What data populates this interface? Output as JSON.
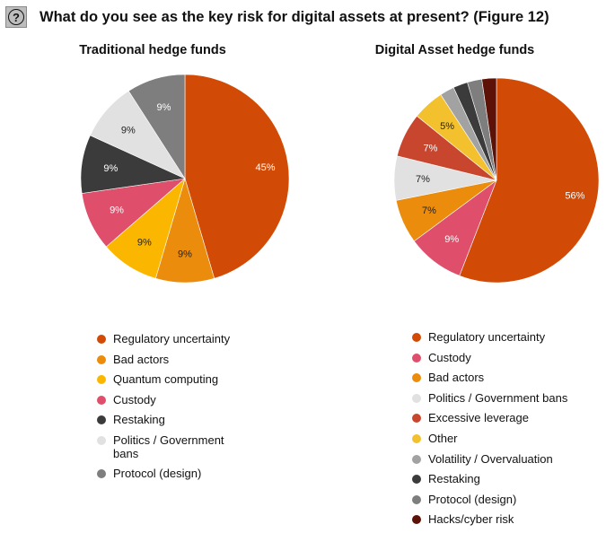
{
  "header": {
    "help_icon": "question-circle-icon",
    "title": "What do you see as the key risk for digital assets at present? (Figure 12)"
  },
  "chart_data": [
    {
      "type": "pie",
      "title": "Traditional hedge funds",
      "value_unit": "%",
      "slices": [
        {
          "label": "Regulatory uncertainty",
          "value": 45,
          "color": "#d14b06"
        },
        {
          "label": "Bad actors",
          "value": 9,
          "color": "#eb8c0c"
        },
        {
          "label": "Quantum computing",
          "value": 9,
          "color": "#fbb700"
        },
        {
          "label": "Custody",
          "value": 9,
          "color": "#df4f6b"
        },
        {
          "label": "Restaking",
          "value": 9,
          "color": "#3b3b3b"
        },
        {
          "label": "Politics / Government bans",
          "legend_label": "Politics / Government\nbans",
          "value": 9,
          "color": "#e1e1e1"
        },
        {
          "label": "Protocol (design)",
          "value": 9,
          "color": "#7e7e7e"
        }
      ],
      "legend_position": "bottom"
    },
    {
      "type": "pie",
      "title": "Digital Asset hedge funds",
      "value_unit": "%",
      "slices": [
        {
          "label": "Regulatory uncertainty",
          "value": 56,
          "color": "#d14b06"
        },
        {
          "label": "Custody",
          "value": 9,
          "color": "#df4f6b"
        },
        {
          "label": "Bad actors",
          "value": 7,
          "color": "#eb8c0c"
        },
        {
          "label": "Politics / Government bans",
          "value": 7,
          "color": "#e1e1e1"
        },
        {
          "label": "Excessive leverage",
          "value": 7,
          "color": "#c9462e"
        },
        {
          "label": "Other",
          "value": 5,
          "color": "#f3c12e"
        },
        {
          "label": "Volatility / Overvaluation",
          "value": 2.3,
          "color": "#a2a2a2"
        },
        {
          "label": "Restaking",
          "value": 2.3,
          "color": "#3b3b3b"
        },
        {
          "label": "Protocol (design)",
          "value": 2.3,
          "color": "#7e7e7e"
        },
        {
          "label": "Hacks/cyber risk",
          "value": 2.3,
          "color": "#5d1207"
        }
      ],
      "legend_position": "bottom"
    }
  ]
}
